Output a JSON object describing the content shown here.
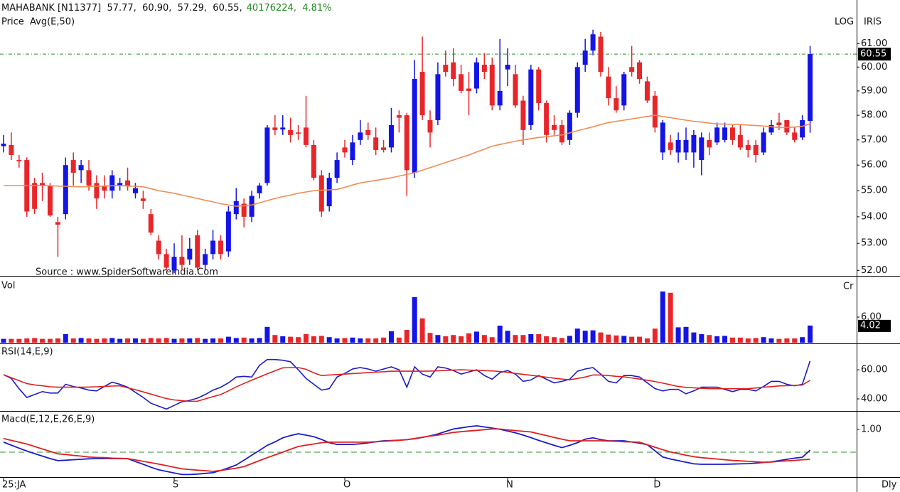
{
  "chart_data": {
    "type": "candlestick",
    "title": "MAHABANK [N11377]  57.77,  60.90,  57.29,  60.55,",
    "subtitle": "40176224,  4.81%",
    "price_label": "Price",
    "price_color": "#1f3fd8",
    "scale_label": "LOG",
    "source_label": "IRIS",
    "annotation": "Source : www.SpiderSoftwareIndia.Com",
    "period_label": "Dly",
    "log_scale": true,
    "up_color": "#1414e6",
    "down_color": "#e8262a",
    "close_line_color": "#2f8f2f",
    "xlim": [
      -0.46,
      110
    ],
    "xticks": [
      {
        "value": 0,
        "label": "25:JA"
      },
      {
        "value": 22,
        "label": "S"
      },
      {
        "value": 44,
        "label": "O"
      },
      {
        "value": 65,
        "label": "N"
      },
      {
        "value": 84,
        "label": "D"
      }
    ],
    "ylim": [
      51.8,
      62.9
    ],
    "yticks": [
      {
        "value": 61,
        "label": "61.00"
      },
      {
        "value": 60,
        "label": "60.00"
      },
      {
        "value": 59,
        "label": "59.00"
      },
      {
        "value": 58,
        "label": "58.00"
      },
      {
        "value": 57,
        "label": "57.00"
      },
      {
        "value": 56,
        "label": "56.00"
      },
      {
        "value": 55,
        "label": "55.00"
      },
      {
        "value": 54,
        "label": "54.00"
      },
      {
        "value": 53,
        "label": "53.00"
      },
      {
        "value": 52,
        "label": "52.00"
      }
    ],
    "open": [
      56.75,
      56.8,
      56.2,
      56.2,
      55.3,
      55.3,
      55.2,
      53.8,
      54.1,
      56.2,
      55.8,
      55.8,
      55.3,
      55.2,
      55.0,
      55.2,
      55.4,
      54.9,
      54.7,
      54.1,
      53.1,
      52.6,
      52.0,
      52.5,
      52.4,
      53.3,
      52.2,
      52.6,
      53.1,
      52.7,
      54.1,
      54.5,
      54.0,
      54.9,
      55.3,
      57.5,
      57.42,
      57.4,
      57.3,
      57.5,
      56.8,
      55.6,
      54.4,
      55.5,
      56.7,
      56.2,
      57.0,
      57.4,
      57.1,
      56.7,
      56.7,
      58.0,
      58.0,
      55.7,
      59.8,
      57.8,
      57.8,
      60.1,
      60.2,
      59.7,
      59.1,
      59.1,
      60.1,
      60.1,
      58.4,
      59.9,
      59.7,
      58.6,
      57.6,
      59.9,
      58.5,
      57.6,
      57.6,
      57.0,
      58.1,
      60.1,
      60.7,
      61.3,
      59.6,
      58.7,
      58.4,
      60.0,
      60.2,
      59.4,
      58.8,
      56.5,
      56.9,
      56.5,
      56.5,
      56.5,
      56.2,
      57.0,
      56.9,
      57.0,
      57.5,
      57.2,
      56.8,
      56.8,
      56.5,
      57.3,
      57.7,
      57.8,
      57.3,
      57.1,
      57.77
    ],
    "high": [
      57.2,
      57.3,
      56.4,
      56.3,
      55.5,
      55.7,
      55.3,
      54.0,
      56.3,
      56.5,
      56.2,
      56.2,
      55.6,
      55.6,
      55.8,
      55.5,
      55.9,
      55.3,
      55.0,
      54.3,
      53.3,
      52.8,
      53.0,
      53.3,
      53.2,
      53.5,
      52.8,
      53.5,
      53.3,
      54.4,
      55.1,
      54.7,
      55.0,
      55.3,
      57.6,
      58.0,
      58.0,
      57.9,
      57.6,
      58.8,
      57.0,
      55.8,
      55.7,
      56.5,
      57.0,
      57.2,
      57.8,
      57.7,
      57.5,
      57.0,
      58.3,
      58.2,
      58.1,
      60.3,
      61.3,
      58.2,
      60.2,
      60.7,
      60.8,
      60.1,
      59.8,
      60.4,
      60.6,
      60.4,
      61.2,
      60.8,
      60.1,
      58.8,
      60.1,
      60.0,
      58.6,
      58.0,
      57.8,
      58.2,
      60.2,
      61.2,
      61.6,
      61.5,
      60.0,
      59.2,
      59.8,
      60.9,
      60.3,
      59.6,
      59.0,
      57.8,
      57.2,
      57.3,
      57.5,
      57.4,
      57.3,
      57.3,
      57.7,
      57.7,
      57.6,
      57.6,
      57.0,
      57.0,
      57.5,
      57.8,
      58.1,
      57.8,
      57.5,
      58.0,
      60.9
    ],
    "low": [
      56.5,
      56.2,
      55.9,
      54.0,
      54.1,
      54.6,
      54.0,
      52.5,
      53.9,
      55.2,
      55.3,
      55.0,
      54.3,
      54.7,
      54.7,
      55.0,
      55.0,
      54.7,
      54.3,
      53.3,
      52.4,
      52.0,
      51.9,
      52.0,
      52.2,
      52.0,
      52.0,
      52.4,
      52.4,
      52.5,
      53.9,
      53.6,
      53.8,
      54.7,
      55.2,
      57.2,
      57.2,
      56.9,
      57.0,
      56.7,
      55.4,
      54.0,
      54.2,
      55.3,
      56.3,
      56.0,
      56.8,
      57.0,
      56.4,
      56.5,
      56.5,
      57.3,
      54.8,
      55.5,
      57.8,
      56.7,
      57.6,
      59.6,
      59.2,
      58.9,
      58.0,
      58.9,
      59.5,
      58.2,
      58.2,
      59.2,
      58.3,
      56.8,
      57.4,
      58.2,
      56.9,
      57.2,
      56.8,
      56.8,
      57.9,
      59.8,
      60.5,
      59.6,
      58.4,
      58.1,
      58.2,
      59.6,
      59.3,
      58.5,
      57.3,
      56.2,
      56.4,
      56.1,
      56.2,
      55.9,
      55.6,
      56.4,
      56.8,
      56.9,
      56.8,
      56.6,
      56.3,
      56.1,
      56.4,
      57.2,
      57.4,
      57.2,
      56.9,
      57.0,
      57.29
    ],
    "close": [
      56.85,
      56.4,
      56.15,
      54.2,
      54.3,
      55.2,
      54.05,
      53.7,
      56.0,
      55.7,
      56.0,
      55.2,
      54.7,
      55.0,
      55.6,
      55.3,
      55.2,
      55.1,
      54.6,
      53.4,
      52.6,
      52.1,
      52.5,
      52.2,
      52.8,
      52.1,
      52.6,
      53.1,
      52.6,
      54.2,
      54.6,
      54.0,
      54.8,
      55.2,
      57.5,
      57.4,
      57.5,
      57.2,
      57.25,
      56.8,
      55.5,
      54.2,
      55.5,
      56.2,
      56.5,
      56.9,
      57.3,
      57.2,
      56.6,
      56.6,
      57.6,
      57.9,
      55.8,
      59.5,
      58.0,
      57.3,
      59.7,
      59.8,
      59.5,
      59.0,
      59.0,
      60.2,
      59.8,
      58.4,
      59.0,
      60.1,
      58.4,
      57.4,
      59.9,
      58.5,
      57.2,
      57.4,
      56.9,
      58.1,
      60.0,
      60.7,
      61.4,
      59.8,
      58.7,
      58.2,
      59.7,
      59.8,
      59.5,
      58.6,
      57.5,
      57.7,
      56.6,
      57.0,
      57.0,
      57.2,
      57.1,
      56.7,
      57.5,
      57.5,
      57.0,
      56.7,
      56.6,
      56.4,
      57.3,
      57.6,
      57.6,
      57.3,
      57.0,
      57.8,
      60.55
    ],
    "series": [
      {
        "name": "Avg(E,50)",
        "color": "#ef8c55",
        "values": [
          55.2,
          55.2,
          55.2,
          55.2,
          55.2,
          55.2,
          55.19,
          55.18,
          55.17,
          55.16,
          55.15,
          55.16,
          55.17,
          55.18,
          55.19,
          55.2,
          55.18,
          55.17,
          55.15,
          55.08,
          55.0,
          54.95,
          54.9,
          54.83,
          54.77,
          54.7,
          54.63,
          54.57,
          54.5,
          54.45,
          54.4,
          54.42,
          54.45,
          54.53,
          54.62,
          54.7,
          54.77,
          54.83,
          54.9,
          54.95,
          55.0,
          55.02,
          55.03,
          55.05,
          55.13,
          55.22,
          55.3,
          55.35,
          55.4,
          55.45,
          55.5,
          55.57,
          55.63,
          55.7,
          55.8,
          55.9,
          56.0,
          56.1,
          56.2,
          56.3,
          56.4,
          56.52,
          56.63,
          56.75,
          56.82,
          56.88,
          56.95,
          57.0,
          57.05,
          57.1,
          57.13,
          57.17,
          57.2,
          57.28,
          57.37,
          57.45,
          57.53,
          57.62,
          57.7,
          57.75,
          57.8,
          57.85,
          57.9,
          57.95,
          58.0,
          57.95,
          57.9,
          57.85,
          57.8,
          57.75,
          57.72,
          57.68,
          57.65,
          57.64,
          57.63,
          57.62,
          57.6,
          57.58,
          57.56,
          57.53,
          57.5,
          57.5,
          57.52,
          57.55,
          57.65
        ]
      }
    ],
    "volume": {
      "label": "Vol",
      "unit": "Cr",
      "ylim": [
        0,
        15.5
      ],
      "yticks": [
        {
          "value": 6,
          "label": "6.00"
        }
      ],
      "values": [
        0.9,
        0.9,
        0.9,
        1.0,
        1.1,
        0.9,
        0.9,
        1.0,
        2.0,
        1.0,
        1.1,
        1.0,
        0.9,
        1.0,
        1.1,
        0.9,
        1.0,
        1.0,
        0.9,
        1.1,
        1.0,
        1.1,
        0.9,
        1.0,
        1.0,
        1.1,
        0.9,
        1.0,
        1.0,
        1.4,
        1.1,
        1.2,
        1.0,
        1.1,
        3.7,
        1.8,
        1.5,
        1.4,
        1.3,
        2.0,
        1.5,
        1.6,
        1.3,
        1.0,
        1.1,
        1.2,
        1.0,
        1.0,
        1.0,
        1.2,
        2.7,
        1.2,
        3.0,
        10.7,
        5.7,
        2.3,
        1.8,
        1.5,
        1.8,
        1.5,
        2.2,
        2.6,
        1.8,
        1.3,
        4.0,
        2.8,
        1.8,
        1.8,
        2.0,
        2.0,
        1.5,
        1.3,
        1.1,
        1.6,
        3.3,
        2.8,
        2.9,
        2.4,
        1.9,
        1.7,
        1.6,
        1.4,
        1.4,
        1.0,
        3.3,
        12.0,
        11.7,
        3.6,
        3.7,
        2.4,
        2.0,
        1.8,
        1.5,
        1.6,
        1.2,
        1.2,
        1.0,
        1.1,
        1.3,
        1.0,
        0.9,
        1.0,
        1.0,
        1.3,
        4.02
      ]
    },
    "rsi": {
      "label": "RSI(14,E,9)",
      "ylim": [
        32.2,
        77.6
      ],
      "yticks": [
        {
          "value": 60,
          "label": "60.00"
        },
        {
          "value": 40,
          "label": "40.00"
        }
      ],
      "series": [
        {
          "color": "#1c1cc8",
          "values": [
            56.6,
            54,
            47,
            41,
            43,
            45,
            44,
            44,
            50,
            48.5,
            47.5,
            46,
            45.5,
            48.5,
            51.5,
            50,
            48,
            44.5,
            41,
            37,
            35,
            33,
            35.5,
            38,
            39,
            40.5,
            43,
            46,
            48,
            51,
            55,
            55.5,
            55,
            63,
            67,
            67,
            66.5,
            65.5,
            60,
            54,
            50,
            46,
            47,
            55,
            57.5,
            60.5,
            61.5,
            60.5,
            59,
            60.5,
            62,
            60,
            48,
            62,
            57,
            55,
            62,
            61.2,
            59.5,
            57,
            58.5,
            60,
            56,
            53.5,
            58,
            59.5,
            57,
            52,
            53,
            56,
            53.5,
            51,
            52,
            53.5,
            59,
            60.5,
            61.5,
            57,
            52,
            51,
            56,
            56,
            55,
            51,
            47,
            45.5,
            46.5,
            46.5,
            43.5,
            45.5,
            48,
            48,
            48,
            46.5,
            45,
            46.5,
            46.5,
            45.5,
            48.5,
            52,
            52,
            50,
            49,
            50,
            66
          ]
        },
        {
          "color": "#e02020",
          "values": [
            56.6,
            54.5,
            52.5,
            50.5,
            49.6,
            49,
            48.3,
            48,
            48,
            48,
            48,
            48.1,
            48.3,
            48.5,
            48.8,
            49,
            47.6,
            46.3,
            44.8,
            43.3,
            41.7,
            40.2,
            39.3,
            38.8,
            38.3,
            38.4,
            40,
            41.5,
            43,
            45.5,
            48.2,
            50.6,
            52.8,
            55,
            57.2,
            59.3,
            61.3,
            61.5,
            61.5,
            60.3,
            57.9,
            56,
            56.4,
            56.7,
            57,
            57.4,
            57.7,
            58,
            58.3,
            58.6,
            59,
            59,
            59,
            59,
            59,
            59.1,
            59.3,
            59.5,
            59.8,
            60,
            59.8,
            59.6,
            59.4,
            59.2,
            58.8,
            58.2,
            57.5,
            56.8,
            56.2,
            55.6,
            54.9,
            54.2,
            53.6,
            53.1,
            54,
            55,
            56.4,
            56.4,
            56,
            55.5,
            55.1,
            54.4,
            53.6,
            52.8,
            51.9,
            50.8,
            49.7,
            48.5,
            47.9,
            47.6,
            47.3,
            47,
            47,
            47,
            47,
            47,
            47.1,
            47.5,
            48,
            48.4,
            48.9,
            49.1,
            49.3,
            49.5,
            52.7
          ]
        }
      ]
    },
    "macd": {
      "label": "Macd(E,12,E,26,E,9)",
      "ylim": [
        -1.06,
        1.78
      ],
      "yticks": [
        {
          "value": 1,
          "label": "1.00"
        }
      ],
      "zero_line": 0,
      "zero_line_color": "#2f8f2f",
      "series": [
        {
          "color": "#1c1cc8",
          "values": [
            0.44,
            0.31,
            0.18,
            0.05,
            -0.06,
            -0.17,
            -0.28,
            -0.37,
            -0.35,
            -0.33,
            -0.31,
            -0.29,
            -0.28,
            -0.28,
            -0.28,
            -0.28,
            -0.28,
            -0.41,
            -0.53,
            -0.66,
            -0.77,
            -0.84,
            -0.91,
            -0.98,
            -0.98,
            -0.96,
            -0.93,
            -0.9,
            -0.8,
            -0.69,
            -0.56,
            -0.35,
            -0.13,
            0.08,
            0.3,
            0.45,
            0.63,
            0.73,
            0.81,
            0.75,
            0.68,
            0.56,
            0.42,
            0.34,
            0.34,
            0.34,
            0.37,
            0.41,
            0.46,
            0.5,
            0.51,
            0.53,
            0.55,
            0.59,
            0.65,
            0.72,
            0.8,
            0.91,
            1.02,
            1.07,
            1.12,
            1.16,
            1.11,
            1.06,
            1.01,
            0.93,
            0.85,
            0.75,
            0.64,
            0.52,
            0.41,
            0.3,
            0.2,
            0.3,
            0.42,
            0.57,
            0.63,
            0.55,
            0.5,
            0.5,
            0.5,
            0.45,
            0.4,
            0.33,
            0.06,
            -0.21,
            -0.3,
            -0.37,
            -0.44,
            -0.51,
            -0.53,
            -0.53,
            -0.53,
            -0.53,
            -0.52,
            -0.51,
            -0.5,
            -0.48,
            -0.45,
            -0.42,
            -0.37,
            -0.31,
            -0.26,
            -0.22,
            0.09
          ]
        },
        {
          "color": "#e02020",
          "values": [
            0.6,
            0.52,
            0.44,
            0.36,
            0.25,
            0.14,
            0.04,
            -0.07,
            -0.1,
            -0.14,
            -0.17,
            -0.21,
            -0.23,
            -0.24,
            -0.26,
            -0.27,
            -0.28,
            -0.34,
            -0.4,
            -0.46,
            -0.52,
            -0.59,
            -0.66,
            -0.73,
            -0.76,
            -0.79,
            -0.81,
            -0.84,
            -0.8,
            -0.75,
            -0.7,
            -0.63,
            -0.5,
            -0.37,
            -0.24,
            -0.12,
            0.0,
            0.13,
            0.25,
            0.31,
            0.36,
            0.42,
            0.44,
            0.44,
            0.44,
            0.44,
            0.44,
            0.44,
            0.46,
            0.48,
            0.5,
            0.52,
            0.55,
            0.6,
            0.66,
            0.71,
            0.75,
            0.81,
            0.87,
            0.9,
            0.93,
            0.96,
            0.99,
            1.02,
            1.02,
            0.98,
            0.95,
            0.92,
            0.89,
            0.81,
            0.73,
            0.65,
            0.57,
            0.5,
            0.5,
            0.5,
            0.5,
            0.5,
            0.49,
            0.48,
            0.46,
            0.45,
            0.44,
            0.33,
            0.22,
            0.11,
            0.01,
            -0.06,
            -0.13,
            -0.2,
            -0.24,
            -0.27,
            -0.3,
            -0.33,
            -0.36,
            -0.38,
            -0.4,
            -0.42,
            -0.44,
            -0.43,
            -0.4,
            -0.38,
            -0.36,
            -0.33,
            -0.31
          ]
        }
      ]
    }
  }
}
